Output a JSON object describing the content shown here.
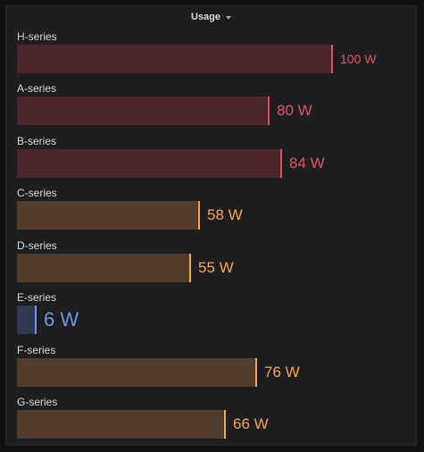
{
  "panel": {
    "title": "Usage"
  },
  "colors": {
    "red_line": "#e15360",
    "red_fill": "#4a262a",
    "orange_line": "#f5a54f",
    "orange_fill": "#4f3c2c",
    "blue_line": "#6f96e4",
    "blue_fill": "#2f3a52"
  },
  "scale_max": 100,
  "gauges": [
    {
      "label": "H-series",
      "value": 100,
      "display": "100 W",
      "color": "red"
    },
    {
      "label": "A-series",
      "value": 80,
      "display": "80 W",
      "color": "red"
    },
    {
      "label": "B-series",
      "value": 84,
      "display": "84 W",
      "color": "red"
    },
    {
      "label": "C-series",
      "value": 58,
      "display": "58 W",
      "color": "orange"
    },
    {
      "label": "D-series",
      "value": 55,
      "display": "55 W",
      "color": "orange"
    },
    {
      "label": "E-series",
      "value": 6,
      "display": "6 W",
      "color": "blue"
    },
    {
      "label": "F-series",
      "value": 76,
      "display": "76 W",
      "color": "orange"
    },
    {
      "label": "G-series",
      "value": 66,
      "display": "66 W",
      "color": "orange"
    }
  ]
}
